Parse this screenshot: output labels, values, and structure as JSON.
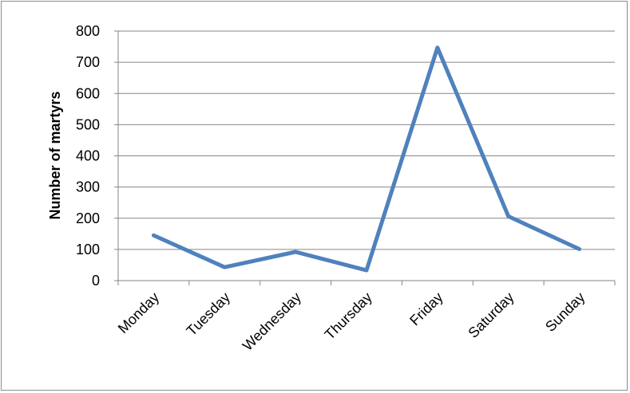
{
  "chart_data": {
    "type": "line",
    "title": "",
    "xlabel": "",
    "ylabel": "Number of martyrs",
    "categories": [
      "Monday",
      "Tuesday",
      "Wednesday",
      "Thursday",
      "Friday",
      "Saturday",
      "Sunday"
    ],
    "series": [
      {
        "values": [
          145,
          43,
          92,
          33,
          747,
          206,
          101
        ],
        "color": "#4f81bd"
      }
    ],
    "ylim": [
      0,
      800
    ],
    "yticks": [
      0,
      100,
      200,
      300,
      400,
      500,
      600,
      700,
      800
    ],
    "grid": true,
    "legend": "none"
  }
}
